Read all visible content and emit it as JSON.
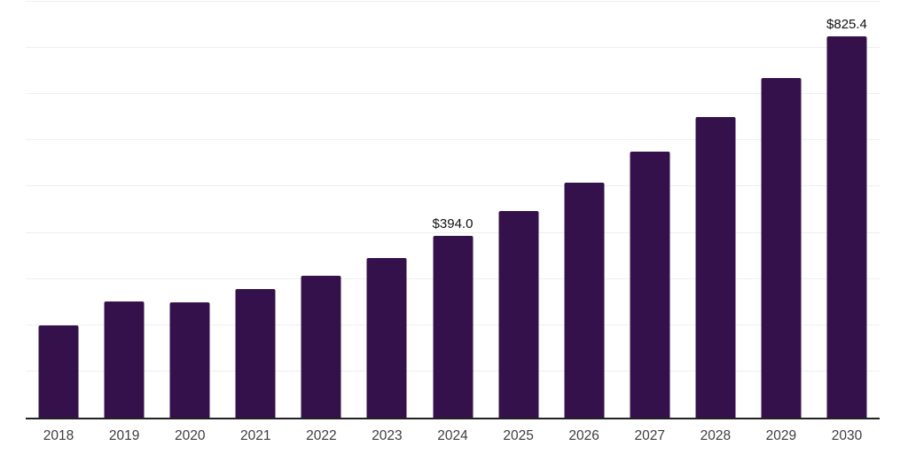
{
  "chart_data": {
    "type": "bar",
    "title": "",
    "xlabel": "",
    "ylabel": "",
    "categories": [
      "2018",
      "2019",
      "2020",
      "2021",
      "2022",
      "2023",
      "2024",
      "2025",
      "2026",
      "2027",
      "2028",
      "2029",
      "2030"
    ],
    "values": [
      200,
      252,
      250,
      279,
      308,
      346,
      394.0,
      447,
      509,
      575,
      651,
      736,
      825.4
    ],
    "value_labels": [
      "",
      "",
      "",
      "",
      "",
      "",
      "$394.0",
      "",
      "",
      "",
      "",
      "",
      "$825.4"
    ],
    "ylim": [
      0,
      900
    ],
    "gridline_step": 100,
    "grid": true,
    "legend": false,
    "y_tick_labels_visible": false,
    "colors": {
      "bar": "#35114B",
      "gridline": "#efefef",
      "axis": "#222222",
      "tick_label": "#3d3d3d",
      "value_label": "#111111",
      "background": "#ffffff"
    }
  }
}
